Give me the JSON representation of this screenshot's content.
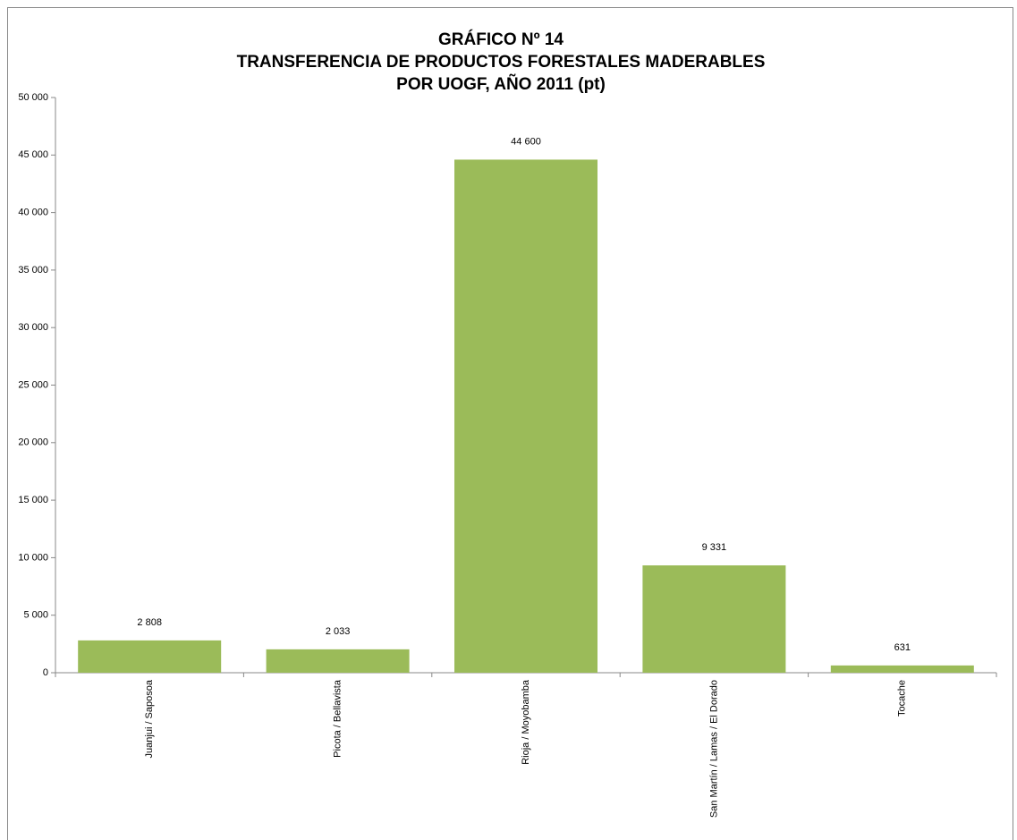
{
  "chart_data": {
    "type": "bar",
    "title": [
      "GRÁFICO Nº 14",
      "TRANSFERENCIA DE PRODUCTOS FORESTALES MADERABLES",
      "POR UOGF, AÑO 2011 (pt)"
    ],
    "categories": [
      "Juanjui / Saposoa",
      "Picota / Bellavista",
      "Rioja / Moyobamba",
      "San Martín / Lamas / El Dorado",
      "Tocache"
    ],
    "values": [
      2808,
      2033,
      44600,
      9331,
      631
    ],
    "value_labels": [
      "2 808",
      "2 033",
      "44 600",
      "9 331",
      "631"
    ],
    "color": "#9bbb59",
    "ylim": [
      0,
      50000
    ],
    "yticks": [
      0,
      {
        "value": 5000,
        "label": "5 000"
      },
      {
        "value": 10000,
        "label": "10 000"
      },
      {
        "value": 15000,
        "label": "15 000"
      },
      {
        "value": 20000,
        "label": "20 000"
      },
      {
        "value": 25000,
        "label": "25 000"
      },
      {
        "value": 30000,
        "label": "30 000"
      },
      {
        "value": 35000,
        "label": "35 000"
      },
      {
        "value": 40000,
        "label": "40 000"
      },
      {
        "value": 45000,
        "label": "45 000"
      },
      {
        "value": 50000,
        "label": "50 000"
      }
    ],
    "grid": false
  }
}
